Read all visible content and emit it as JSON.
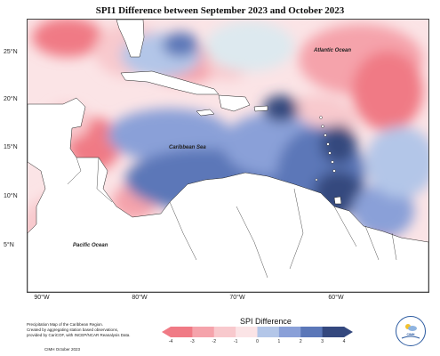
{
  "title": "SPI1 Difference between September 2023 and October 2023",
  "lat_labels": [
    "25°N",
    "20°N",
    "15°N",
    "10°N",
    "5°N"
  ],
  "lon_labels": [
    "90°W",
    "80°W",
    "70°W",
    "60°W"
  ],
  "map_labels": {
    "atlantic": "Atlantic Ocean",
    "caribbean": "Caribbean Sea",
    "pacific": "Pacific Ocean"
  },
  "footnote": [
    "Precipitation Map of the Caribbean Region.",
    "Created by aggregating station based observations,",
    "provided by CariCOF, with INCEP/NCAR Reanalysis Data."
  ],
  "credit": "CIMH October 2023",
  "legend": {
    "title": "SPI Difference",
    "ticks": [
      "-4",
      "-3",
      "-2",
      "-1",
      "0",
      "1",
      "2",
      "3",
      "4"
    ],
    "colors": [
      "#f07a85",
      "#f5a3ab",
      "#f8c9cd",
      "#fbe4e6",
      "#dde9ef",
      "#b3c6e8",
      "#8aa0d8",
      "#5b77b8",
      "#34487e"
    ]
  },
  "logo_text": "CIMH"
}
